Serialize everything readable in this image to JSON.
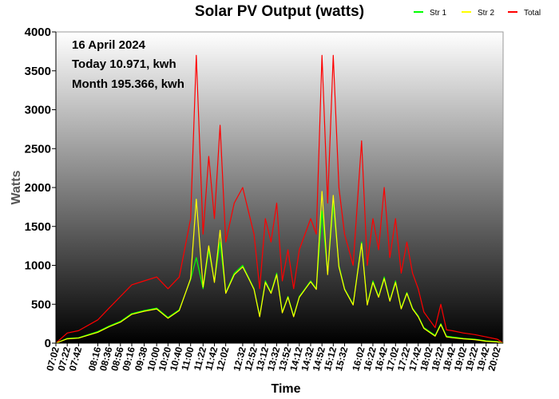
{
  "chart_data": {
    "type": "line",
    "title": "Solar PV Output (watts)",
    "xlabel": "Time",
    "ylabel": "Watts",
    "ylim": [
      0,
      4000
    ],
    "yticks": [
      0,
      500,
      1000,
      1500,
      2000,
      2500,
      3000,
      3500,
      4000
    ],
    "grid": false,
    "legend_position": "top-right",
    "background": "vertical gradient, white at top to black at bottom",
    "annotations": [
      "16 April 2024",
      "Today 10.971, kwh",
      "Month 195.366, kwh"
    ],
    "x_tick_labels": [
      "07:02",
      "07:22",
      "07:42",
      "08:16",
      "08:36",
      "08:56",
      "09:16",
      "09:38",
      "10:00",
      "10:20",
      "10:40",
      "11:00",
      "11:22",
      "11:42",
      "12:02",
      "12:32",
      "12:52",
      "13:12",
      "13:32",
      "13:52",
      "14:12",
      "14:32",
      "14:52",
      "15:12",
      "15:32",
      "16:02",
      "16:22",
      "16:42",
      "17:02",
      "17:22",
      "17:42",
      "18:02",
      "18:22",
      "18:42",
      "19:02",
      "19:22",
      "19:42",
      "20:02"
    ],
    "x": [
      "07:02",
      "07:22",
      "07:42",
      "08:16",
      "08:36",
      "08:56",
      "09:16",
      "09:38",
      "10:00",
      "10:20",
      "10:40",
      "11:00",
      "11:10",
      "11:22",
      "11:32",
      "11:42",
      "11:52",
      "12:02",
      "12:17",
      "12:32",
      "12:42",
      "12:52",
      "13:02",
      "13:12",
      "13:22",
      "13:32",
      "13:42",
      "13:52",
      "14:02",
      "14:12",
      "14:22",
      "14:32",
      "14:42",
      "14:52",
      "15:02",
      "15:12",
      "15:22",
      "15:32",
      "15:47",
      "16:02",
      "16:12",
      "16:22",
      "16:32",
      "16:42",
      "16:52",
      "17:02",
      "17:12",
      "17:22",
      "17:32",
      "17:42",
      "17:52",
      "18:02",
      "18:12",
      "18:22",
      "18:32",
      "18:42",
      "19:02",
      "19:22",
      "19:42",
      "20:02",
      "20:12"
    ],
    "series": [
      {
        "name": "Str 1",
        "color": "#00ff00",
        "values": [
          0,
          60,
          70,
          150,
          220,
          280,
          380,
          420,
          450,
          330,
          430,
          820,
          1100,
          700,
          1200,
          800,
          1300,
          650,
          900,
          1000,
          850,
          700,
          350,
          800,
          650,
          900,
          400,
          600,
          350,
          600,
          700,
          800,
          700,
          1700,
          900,
          1800,
          1000,
          700,
          500,
          1300,
          500,
          800,
          600,
          850,
          550,
          800,
          450,
          650,
          450,
          350,
          200,
          150,
          100,
          250,
          90,
          80,
          60,
          50,
          30,
          20,
          0
        ]
      },
      {
        "name": "Str 2",
        "color": "#ffff00",
        "values": [
          0,
          55,
          65,
          140,
          210,
          270,
          370,
          410,
          440,
          320,
          420,
          830,
          1850,
          720,
          1250,
          780,
          1450,
          640,
          880,
          980,
          840,
          690,
          340,
          780,
          640,
          880,
          390,
          590,
          340,
          590,
          690,
          790,
          690,
          1950,
          880,
          1900,
          980,
          690,
          490,
          1280,
          490,
          780,
          590,
          830,
          540,
          780,
          440,
          640,
          440,
          340,
          190,
          140,
          90,
          240,
          80,
          70,
          55,
          45,
          25,
          15,
          0
        ]
      },
      {
        "name": "Total",
        "color": "#ff0000",
        "values": [
          0,
          130,
          160,
          300,
          450,
          600,
          750,
          800,
          850,
          700,
          850,
          1600,
          3700,
          1400,
          2400,
          1600,
          2800,
          1300,
          1800,
          2000,
          1700,
          1400,
          700,
          1600,
          1300,
          1800,
          800,
          1200,
          700,
          1200,
          1400,
          1600,
          1400,
          3700,
          1800,
          3700,
          2000,
          1400,
          1000,
          2600,
          1000,
          1600,
          1200,
          2000,
          1100,
          1600,
          900,
          1300,
          900,
          700,
          400,
          300,
          200,
          500,
          170,
          160,
          130,
          110,
          80,
          50,
          0
        ]
      }
    ]
  }
}
